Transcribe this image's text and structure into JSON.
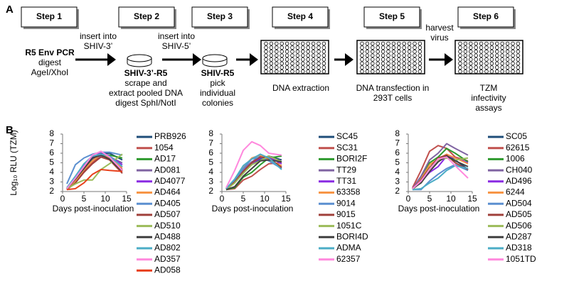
{
  "panel_a": {
    "label": "A",
    "steps": [
      {
        "title": "Step 1",
        "heading": "R5 Env PCR",
        "lines": [
          "digest",
          "AgeI/XhoI"
        ]
      },
      {
        "title": "Step 2",
        "heading": "SHIV-3’-R5",
        "lines": [
          "scrape and",
          "extract pooled DNA",
          "digest SphI/NotI"
        ]
      },
      {
        "title": "Step 3",
        "heading": "SHIV-R5",
        "lines": [
          "pick",
          "individual",
          "colonies"
        ]
      },
      {
        "title": "Step 4",
        "lines": [
          "DNA extraction"
        ]
      },
      {
        "title": "Step 5",
        "lines": [
          "DNA transfection in",
          "293T cells"
        ]
      },
      {
        "title": "Step 6",
        "lines": [
          "TZM",
          "infectivity",
          "assays"
        ]
      }
    ],
    "arrow_labels": [
      [
        "insert into",
        "SHIV-3’"
      ],
      [
        "insert into",
        "SHIV-5’"
      ],
      [
        "harvest",
        "virus"
      ]
    ]
  },
  "panel_b": {
    "label": "B"
  },
  "chart_data": [
    {
      "type": "line",
      "y_label": "Log₁₀ RLU (TZM)",
      "x_label": "Days post-inoculation",
      "xlim": [
        0,
        15
      ],
      "xticks": [
        0,
        5,
        10,
        15
      ],
      "ylim": [
        2,
        8
      ],
      "yticks": [
        2,
        3,
        4,
        5,
        6,
        7,
        8
      ],
      "x": [
        1,
        3,
        5,
        7,
        9,
        11,
        14
      ],
      "series": [
        {
          "name": "PRB926",
          "color": "#1f4e79",
          "values": [
            2.3,
            3.5,
            4.8,
            5.6,
            6.0,
            6.0,
            5.3
          ]
        },
        {
          "name": "1054",
          "color": "#c0504d",
          "values": [
            2.2,
            3.0,
            4.2,
            5.0,
            5.8,
            5.5,
            4.3
          ]
        },
        {
          "name": "AD17",
          "color": "#2e9a2e",
          "values": [
            2.3,
            3.2,
            4.5,
            5.3,
            5.9,
            5.8,
            5.5
          ]
        },
        {
          "name": "AD081",
          "color": "#8064a2",
          "values": [
            2.2,
            3.4,
            4.6,
            5.4,
            5.7,
            5.6,
            5.0
          ]
        },
        {
          "name": "AD4077",
          "color": "#8a2be2",
          "values": [
            2.3,
            3.3,
            4.7,
            5.5,
            6.1,
            5.7,
            4.8
          ]
        },
        {
          "name": "AD464",
          "color": "#f79646",
          "values": [
            2.2,
            3.1,
            4.3,
            5.2,
            5.9,
            5.5,
            4.5
          ]
        },
        {
          "name": "AD405",
          "color": "#5b8fd0",
          "values": [
            2.8,
            4.8,
            5.5,
            5.9,
            6.1,
            6.1,
            5.8
          ]
        },
        {
          "name": "AD507",
          "color": "#a0403a",
          "values": [
            2.2,
            2.9,
            4.0,
            4.9,
            5.6,
            5.3,
            3.9
          ]
        },
        {
          "name": "AD510",
          "color": "#9bbb59",
          "values": [
            2.3,
            2.8,
            3.2,
            3.2,
            4.3,
            4.9,
            5.9
          ]
        },
        {
          "name": "AD488",
          "color": "#404040",
          "values": [
            2.3,
            3.3,
            4.4,
            5.5,
            5.8,
            5.4,
            4.1
          ]
        },
        {
          "name": "AD802",
          "color": "#4bacc6",
          "values": [
            2.4,
            3.6,
            4.9,
            5.7,
            5.9,
            5.7,
            4.6
          ]
        },
        {
          "name": "AD357",
          "color": "#ff88dd",
          "values": [
            2.3,
            3.4,
            4.6,
            5.8,
            6.2,
            5.6,
            4.2
          ]
        },
        {
          "name": "AD058",
          "color": "#e8401c",
          "values": [
            2.2,
            2.3,
            2.9,
            3.8,
            4.3,
            4.2,
            4.1
          ]
        }
      ]
    },
    {
      "type": "line",
      "x_label": "Days post-inoculation",
      "xlim": [
        0,
        15
      ],
      "xticks": [
        0,
        5,
        10,
        15
      ],
      "ylim": [
        2,
        8
      ],
      "yticks": [
        2,
        3,
        4,
        5,
        6,
        7,
        8
      ],
      "x": [
        1,
        3,
        5,
        7,
        9,
        11,
        14
      ],
      "series": [
        {
          "name": "SC45",
          "color": "#1f4e79",
          "values": [
            2.3,
            3.0,
            4.1,
            4.8,
            5.4,
            5.7,
            5.3
          ]
        },
        {
          "name": "SC31",
          "color": "#c0504d",
          "values": [
            2.2,
            2.3,
            3.2,
            3.6,
            4.3,
            4.9,
            5.0
          ]
        },
        {
          "name": "BORI2F",
          "color": "#2e9a2e",
          "values": [
            2.2,
            2.4,
            3.5,
            4.0,
            4.8,
            5.5,
            5.7
          ]
        },
        {
          "name": "TT29",
          "color": "#8064a2",
          "values": [
            2.3,
            3.2,
            4.3,
            5.1,
            5.7,
            5.4,
            4.6
          ]
        },
        {
          "name": "TT31",
          "color": "#8a2be2",
          "values": [
            2.3,
            3.0,
            4.0,
            4.9,
            5.5,
            5.6,
            4.9
          ]
        },
        {
          "name": "63358",
          "color": "#f79646",
          "values": [
            2.3,
            3.1,
            4.5,
            5.5,
            5.8,
            5.3,
            4.7
          ]
        },
        {
          "name": "9014",
          "color": "#5b8fd0",
          "values": [
            2.2,
            3.2,
            4.4,
            5.4,
            5.6,
            5.2,
            4.4
          ]
        },
        {
          "name": "9015",
          "color": "#a0403a",
          "values": [
            2.3,
            3.0,
            4.1,
            5.0,
            5.6,
            5.5,
            4.5
          ]
        },
        {
          "name": "1051C",
          "color": "#9bbb59",
          "values": [
            2.2,
            2.9,
            3.9,
            4.8,
            5.2,
            5.7,
            5.1
          ]
        },
        {
          "name": "BORI4D",
          "color": "#404040",
          "values": [
            2.2,
            2.5,
            3.6,
            4.4,
            5.2,
            5.3,
            5.1
          ]
        },
        {
          "name": "ADMA",
          "color": "#4bacc6",
          "values": [
            2.3,
            3.3,
            4.7,
            5.4,
            5.9,
            5.5,
            4.3
          ]
        },
        {
          "name": "62357",
          "color": "#ff88dd",
          "values": [
            2.4,
            4.2,
            6.3,
            7.2,
            6.8,
            6.0,
            5.8
          ]
        }
      ]
    },
    {
      "type": "line",
      "x_label": "Days post-inoculation",
      "xlim": [
        0,
        15
      ],
      "xticks": [
        0,
        5,
        10,
        15
      ],
      "ylim": [
        2,
        8
      ],
      "yticks": [
        2,
        3,
        4,
        5,
        6,
        7,
        8
      ],
      "x": [
        1,
        3,
        5,
        7,
        9,
        11,
        14
      ],
      "series": [
        {
          "name": "SC05",
          "color": "#1f4e79",
          "values": [
            2.3,
            3.3,
            4.3,
            5.4,
            5.7,
            5.3,
            4.3
          ]
        },
        {
          "name": "62615",
          "color": "#c0504d",
          "values": [
            2.4,
            4.2,
            6.2,
            6.8,
            6.5,
            5.6,
            5.2
          ]
        },
        {
          "name": "1006",
          "color": "#2e9a2e",
          "values": [
            2.3,
            3.4,
            5.0,
            5.6,
            6.5,
            6.0,
            5.1
          ]
        },
        {
          "name": "CH040",
          "color": "#8064a2",
          "values": [
            2.3,
            3.6,
            5.3,
            6.0,
            7.0,
            6.5,
            5.8
          ]
        },
        {
          "name": "AD496",
          "color": "#8a2be2",
          "values": [
            2.3,
            3.0,
            4.0,
            4.6,
            5.7,
            5.5,
            5.0
          ]
        },
        {
          "name": "6244",
          "color": "#f79646",
          "values": [
            2.2,
            3.3,
            4.8,
            5.4,
            5.9,
            5.5,
            4.9
          ]
        },
        {
          "name": "AD504",
          "color": "#5b8fd0",
          "values": [
            2.2,
            2.2,
            3.1,
            3.8,
            4.4,
            4.8,
            4.2
          ]
        },
        {
          "name": "AD505",
          "color": "#a0403a",
          "values": [
            2.3,
            3.2,
            4.5,
            5.5,
            5.8,
            5.0,
            4.3
          ]
        },
        {
          "name": "AD506",
          "color": "#9bbb59",
          "values": [
            2.2,
            3.0,
            4.4,
            5.3,
            5.5,
            5.3,
            5.5
          ]
        },
        {
          "name": "AD287",
          "color": "#404040",
          "values": [
            2.3,
            2.9,
            4.1,
            5.1,
            5.7,
            5.2,
            4.6
          ]
        },
        {
          "name": "AD318",
          "color": "#4bacc6",
          "values": [
            2.2,
            2.3,
            2.9,
            3.4,
            4.2,
            4.7,
            4.4
          ]
        },
        {
          "name": "1051TD",
          "color": "#ff88dd",
          "values": [
            2.3,
            3.1,
            4.3,
            5.4,
            5.6,
            4.7,
            3.4
          ]
        }
      ]
    }
  ]
}
